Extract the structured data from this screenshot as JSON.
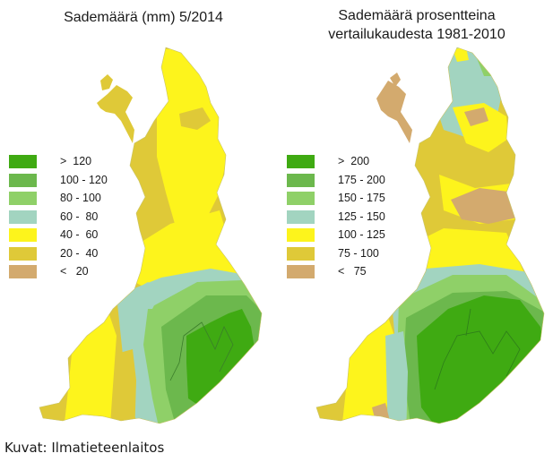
{
  "colors": {
    "green_dark": "#3faa12",
    "green_mid": "#6cb84d",
    "green_light": "#8fd068",
    "teal": "#a2d4c0",
    "yellow": "#fdf41c",
    "olive": "#dfc938",
    "tan": "#d3aa6e"
  },
  "left_map": {
    "title": "Sademäärä (mm) 5/2014",
    "legend": [
      {
        "label": ">  120",
        "color": "#3faa12"
      },
      {
        "label": "100 - 120",
        "color": "#6cb84d"
      },
      {
        "label": "80 - 100",
        "color": "#8fd068"
      },
      {
        "label": "60 -  80",
        "color": "#a2d4c0"
      },
      {
        "label": "40 -  60",
        "color": "#fdf41c"
      },
      {
        "label": "20 -  40",
        "color": "#dfc938"
      },
      {
        "label": "<   20",
        "color": "#d3aa6e"
      }
    ]
  },
  "right_map": {
    "title_line1": "Sademäärä prosentteina",
    "title_line2": "vertailukaudesta 1981-2010",
    "legend": [
      {
        "label": ">  200",
        "color": "#3faa12"
      },
      {
        "label": "175 - 200",
        "color": "#6cb84d"
      },
      {
        "label": "150 - 175",
        "color": "#8fd068"
      },
      {
        "label": "125 - 150",
        "color": "#a2d4c0"
      },
      {
        "label": "100 - 125",
        "color": "#fdf41c"
      },
      {
        "label": "75 - 100",
        "color": "#dfc938"
      },
      {
        "label": "<   75",
        "color": "#d3aa6e"
      }
    ]
  },
  "credit": "Kuvat: Ilmatieteenlaitos"
}
